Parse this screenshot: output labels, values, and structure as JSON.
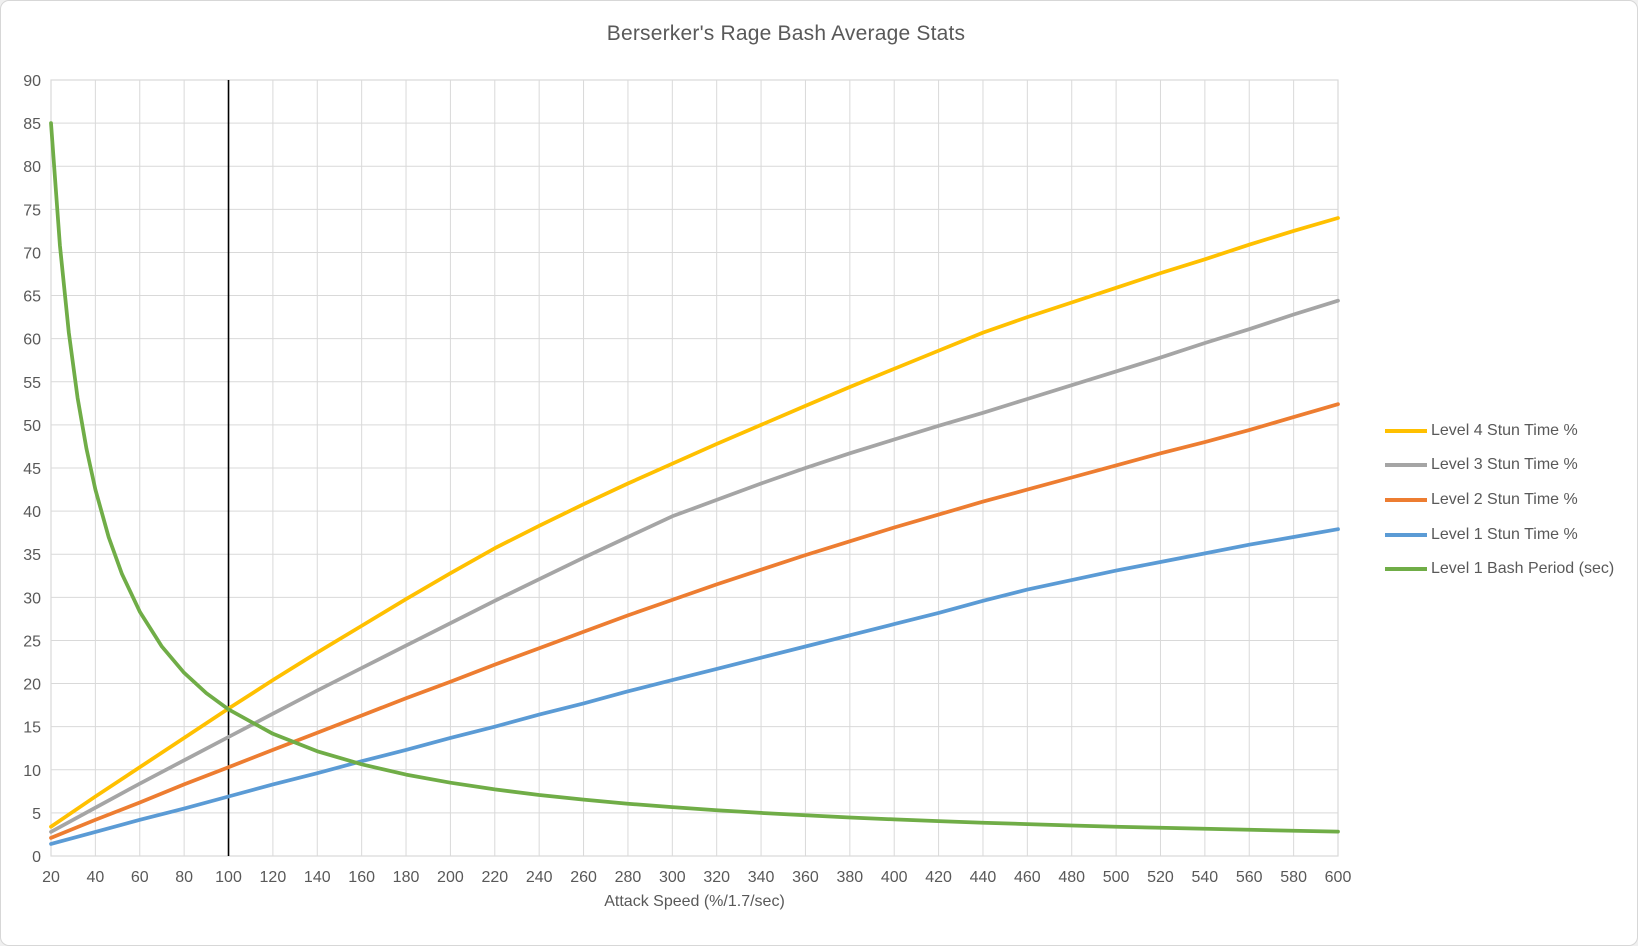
{
  "title": "Berserker's Rage Bash Average Stats",
  "colors": {
    "grid": "#d9d9d9",
    "plot_border": "#d9d9d9",
    "axis_text": "#595959",
    "title_text": "#595959",
    "marker_line": "#000000",
    "background": "#ffffff"
  },
  "chart_data": {
    "type": "line",
    "title": "Berserker's Rage Bash Average Stats",
    "xlabel": "Attack Speed (%/1.7/sec)",
    "ylabel": "",
    "xlim": [
      20,
      600
    ],
    "x_tick_step": 20,
    "ylim": [
      0,
      90
    ],
    "y_tick_step": 5,
    "grid": true,
    "legend_position": "right",
    "annotations": [
      {
        "type": "vline",
        "x": 100,
        "color": "#000000"
      }
    ],
    "x": [
      20,
      40,
      60,
      80,
      100,
      120,
      140,
      160,
      180,
      200,
      220,
      240,
      260,
      280,
      300,
      320,
      340,
      360,
      380,
      400,
      420,
      440,
      460,
      480,
      500,
      520,
      540,
      560,
      580,
      600
    ],
    "series": [
      {
        "name": "Level 4 Stun Time %",
        "color": "#FFC000",
        "values": [
          3.4,
          6.9,
          10.3,
          13.7,
          17.1,
          20.4,
          23.6,
          26.7,
          29.8,
          32.8,
          35.7,
          38.3,
          40.8,
          43.2,
          45.5,
          47.8,
          50.0,
          52.2,
          54.4,
          56.5,
          58.6,
          60.7,
          62.5,
          64.2,
          65.9,
          67.6,
          69.2,
          70.9,
          72.5,
          74.0
        ]
      },
      {
        "name": "Level 3 Stun Time %",
        "color": "#A5A5A5",
        "values": [
          2.8,
          5.6,
          8.4,
          11.1,
          13.8,
          16.5,
          19.2,
          21.8,
          24.4,
          27.0,
          29.6,
          32.1,
          34.6,
          37.0,
          39.4,
          41.3,
          43.2,
          45.0,
          46.7,
          48.3,
          49.9,
          51.4,
          53.0,
          54.6,
          56.2,
          57.8,
          59.5,
          61.1,
          62.8,
          64.4
        ]
      },
      {
        "name": "Level 2 Stun Time %",
        "color": "#ED7D31",
        "values": [
          2.1,
          4.2,
          6.2,
          8.3,
          10.3,
          12.3,
          14.3,
          16.3,
          18.3,
          20.2,
          22.2,
          24.1,
          26.0,
          27.9,
          29.7,
          31.5,
          33.2,
          34.9,
          36.5,
          38.1,
          39.6,
          41.1,
          42.5,
          43.9,
          45.3,
          46.7,
          48.0,
          49.4,
          50.9,
          52.4
        ]
      },
      {
        "name": "Level 1 Stun Time %",
        "color": "#5B9BD5",
        "values": [
          1.4,
          2.8,
          4.2,
          5.5,
          6.9,
          8.3,
          9.6,
          11.0,
          12.3,
          13.7,
          15.0,
          16.4,
          17.7,
          19.1,
          20.4,
          21.7,
          23.0,
          24.3,
          25.6,
          26.9,
          28.2,
          29.6,
          30.9,
          32.0,
          33.1,
          34.1,
          35.1,
          36.1,
          37.0,
          37.9
        ]
      },
      {
        "name": "Level 1 Bash Period (sec)",
        "color": "#70AD47",
        "x": [
          20,
          24,
          28,
          32,
          36,
          40,
          46,
          52,
          60,
          70,
          80,
          90,
          100,
          120,
          140,
          160,
          180,
          200,
          220,
          240,
          260,
          280,
          300,
          320,
          340,
          360,
          380,
          400,
          420,
          440,
          460,
          480,
          500,
          520,
          540,
          560,
          580,
          600
        ],
        "values": [
          85,
          70.83,
          60.71,
          53.13,
          47.22,
          42.5,
          36.96,
          32.69,
          28.33,
          24.29,
          21.25,
          18.89,
          17,
          14.17,
          12.14,
          10.63,
          9.44,
          8.5,
          7.73,
          7.08,
          6.54,
          6.07,
          5.67,
          5.31,
          5.0,
          4.72,
          4.47,
          4.25,
          4.05,
          3.86,
          3.7,
          3.54,
          3.4,
          3.27,
          3.15,
          3.04,
          2.93,
          2.83
        ]
      }
    ]
  }
}
